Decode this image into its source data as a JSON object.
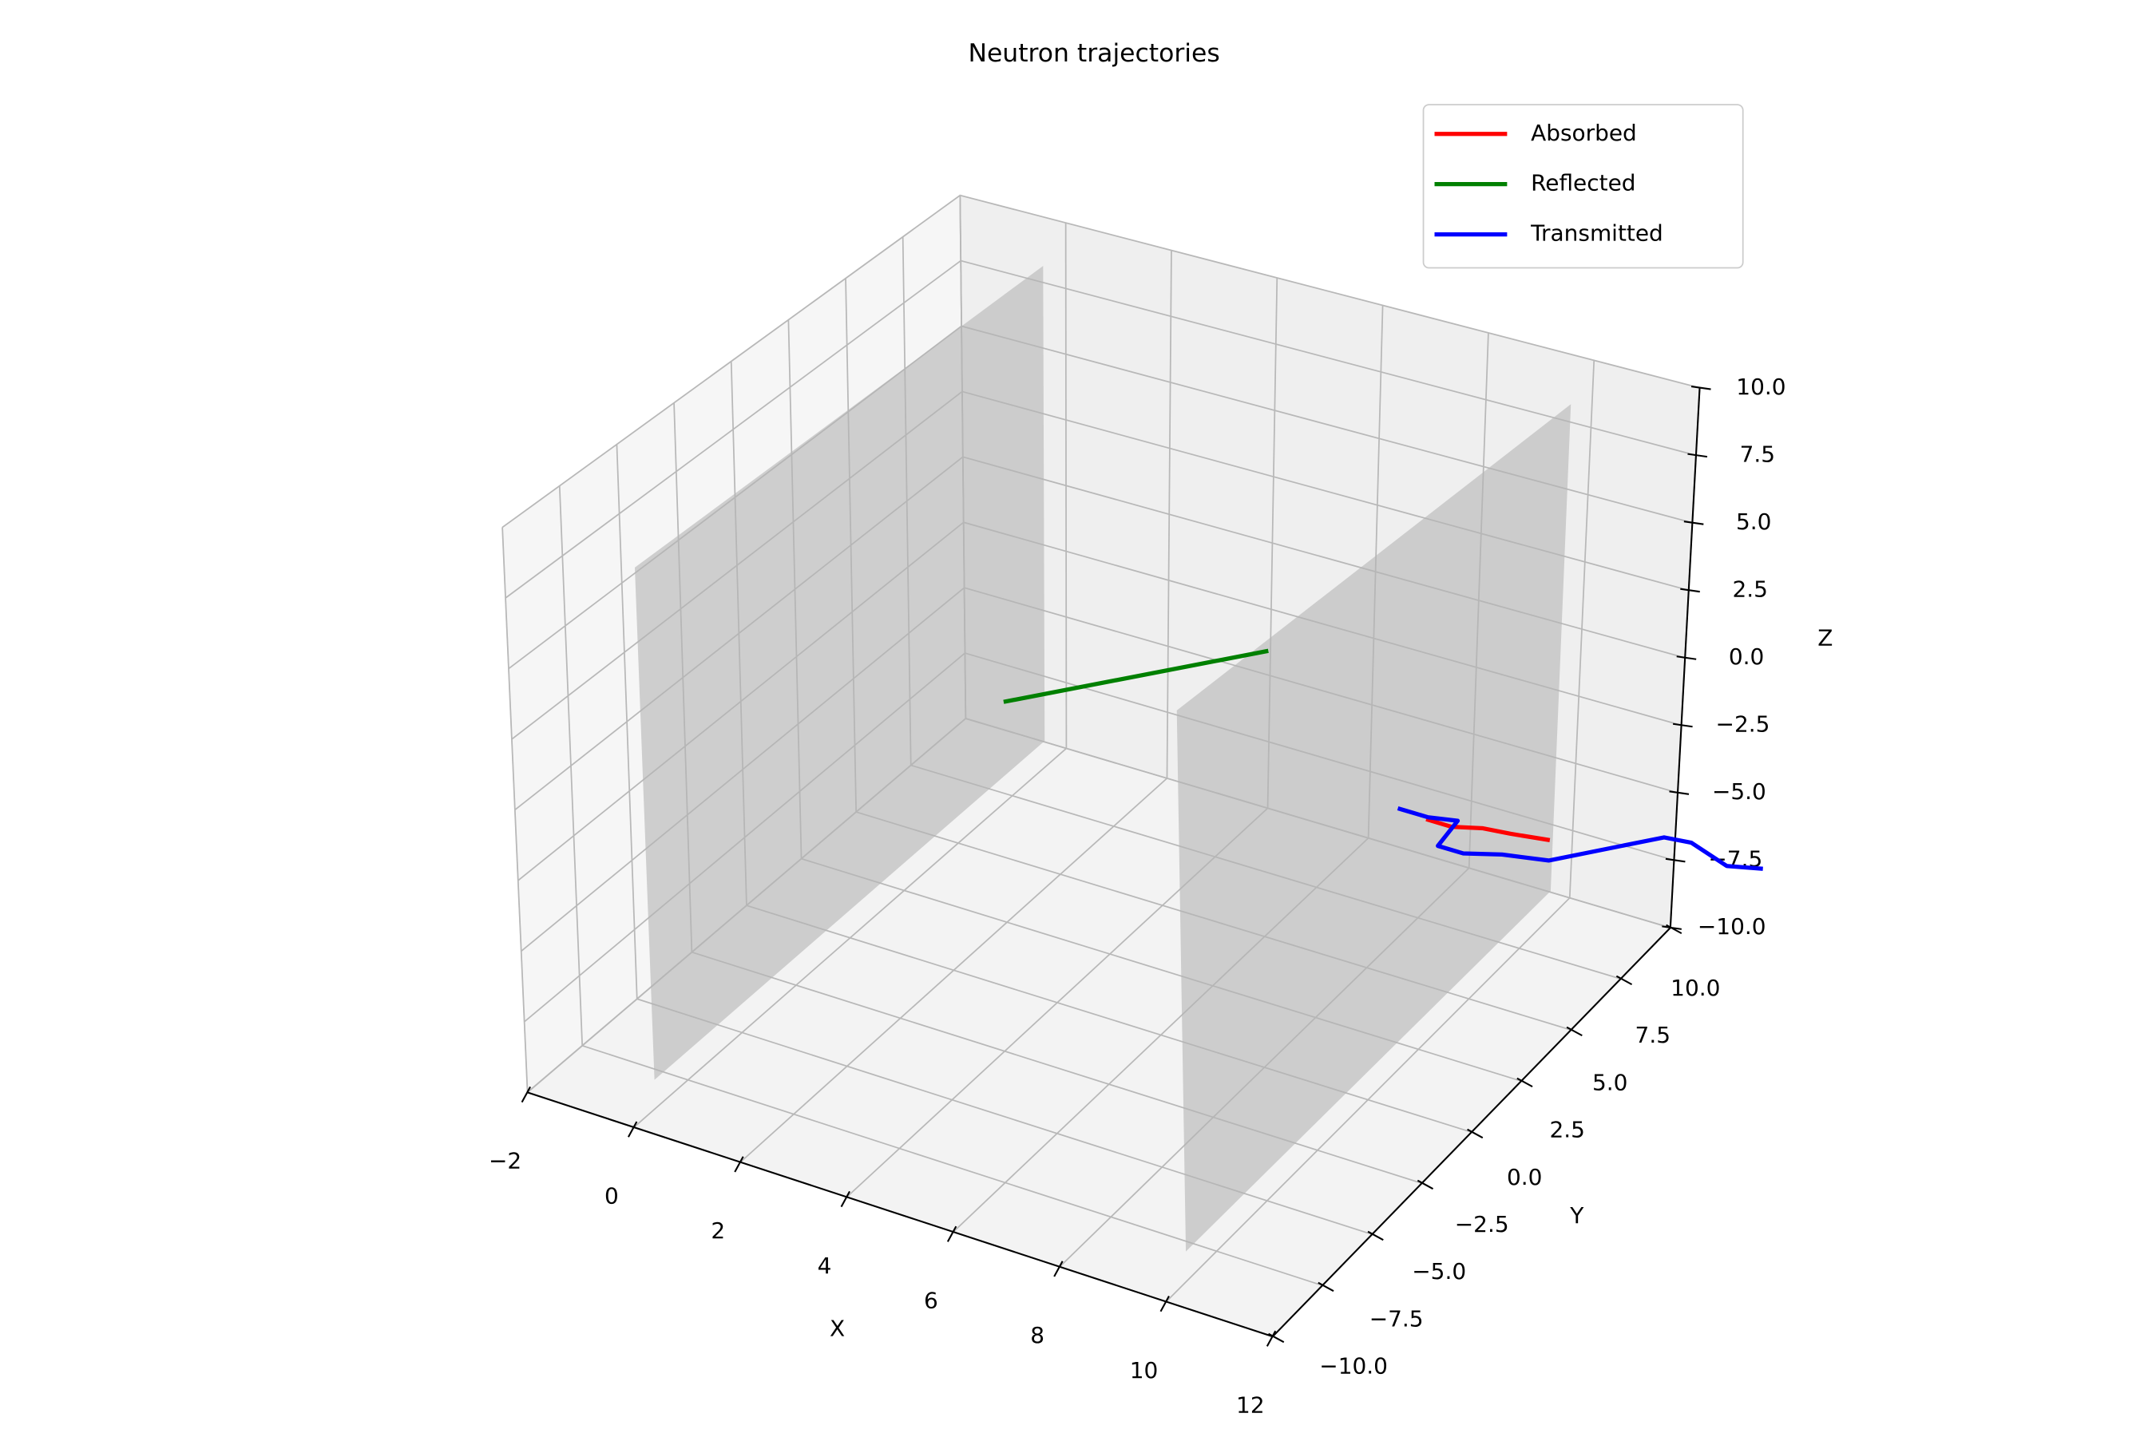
{
  "chart_data": {
    "type": "line3d",
    "title": "Neutron trajectories",
    "x_label": "X",
    "y_label": "Y",
    "z_label": "Z",
    "xlim": [
      -2,
      12
    ],
    "ylim": [
      -10,
      10
    ],
    "zlim": [
      -10,
      10
    ],
    "xticks": [
      {
        "value": -2,
        "label": "−2"
      },
      0,
      2,
      4,
      6,
      8,
      10,
      12
    ],
    "yticks": [
      {
        "value": -10,
        "label": "−10.0"
      },
      {
        "value": -7.5,
        "label": "−7.5"
      },
      {
        "value": -5,
        "label": "−5.0"
      },
      {
        "value": -2.5,
        "label": "−2.5"
      },
      {
        "value": 0,
        "label": "0.0"
      },
      2.5,
      {
        "value": 5,
        "label": "5.0"
      },
      7.5,
      {
        "value": 10,
        "label": "10.0"
      }
    ],
    "zticks": [
      {
        "value": -10,
        "label": "−10.0"
      },
      {
        "value": -7.5,
        "label": "−7.5"
      },
      {
        "value": -5,
        "label": "−5.0"
      },
      {
        "value": -2.5,
        "label": "−2.5"
      },
      {
        "value": 0,
        "label": "0.0"
      },
      2.5,
      {
        "value": 5,
        "label": "5.0"
      },
      7.5,
      {
        "value": 10,
        "label": "10.0"
      }
    ],
    "grid": true,
    "legend": "upper right",
    "planes": [
      {
        "x": 0,
        "y": [
          -9,
          9
        ],
        "z": [
          -9,
          9
        ],
        "color": "#b4b4b4"
      },
      {
        "x": 10,
        "y": [
          -9,
          9
        ],
        "z": [
          -9,
          9
        ],
        "color": "#b4b4b4"
      }
    ],
    "series": [
      {
        "name": "Absorbed",
        "color": "#ff0000",
        "x": [
          7.4,
          7.9,
          8.4,
          8.9,
          9.6
        ],
        "y": [
          9.3,
          9.3,
          9.6,
          9.7,
          9.9
        ],
        "z": [
          -8,
          -8,
          -8,
          -8,
          -8
        ]
      },
      {
        "name": "Reflected",
        "color": "#008000",
        "x": [
          2.9,
          5.8
        ],
        "y": [
          0.3,
          5.5
        ],
        "z": [
          0,
          0
        ]
      },
      {
        "name": "Transmitted",
        "color": "#0000ff",
        "x": [
          6.8,
          7.4,
          7.9,
          8.0,
          8.5,
          9.1,
          9.9,
          11.3,
          11.8,
          12.7,
          13.3
        ],
        "y": [
          9.4,
          9.4,
          9.6,
          8.4,
          8.4,
          8.8,
          9.1,
          11.3,
          11.4,
          10.9,
          11.2
        ],
        "z": [
          -8,
          -8,
          -8,
          -8,
          -8,
          -8,
          -8,
          -8,
          -8,
          -8,
          -8
        ]
      }
    ]
  }
}
